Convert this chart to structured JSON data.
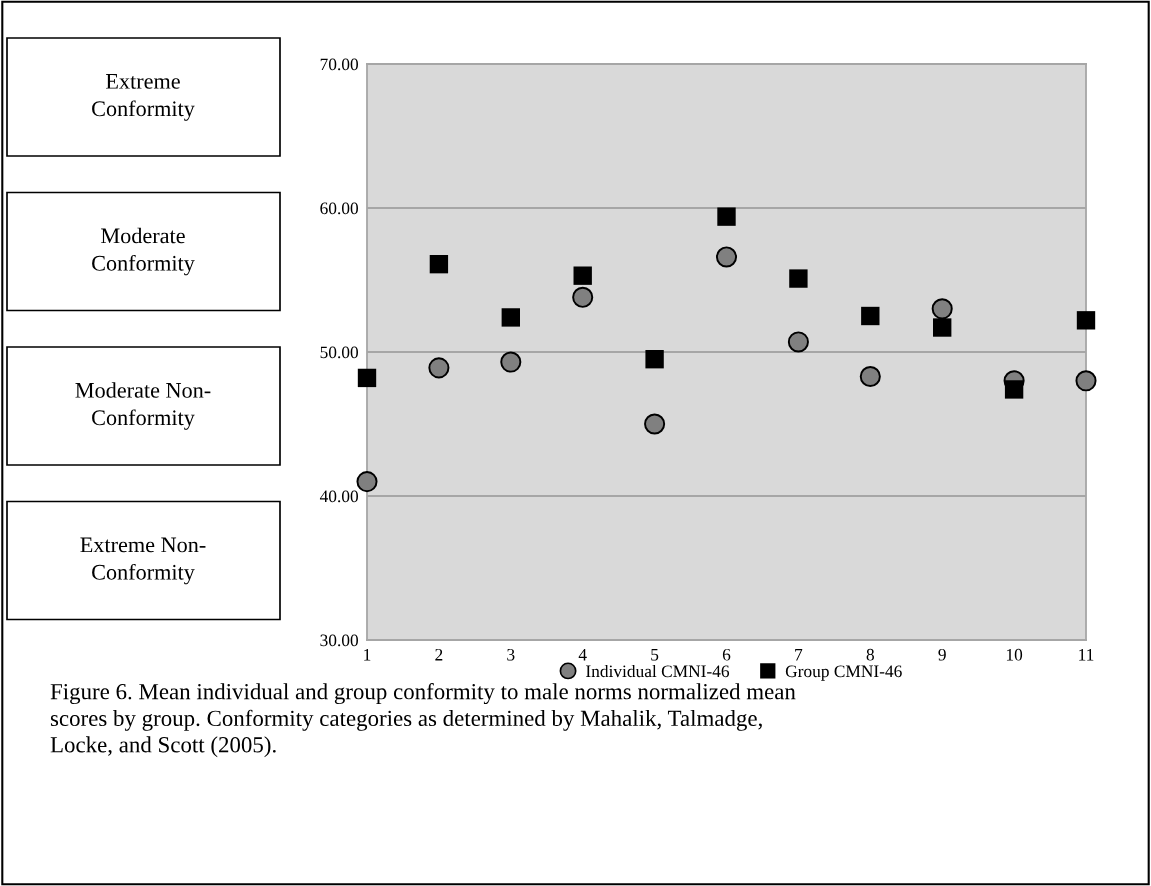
{
  "chart_data": {
    "type": "scatter",
    "categories": [
      "1",
      "2",
      "3",
      "4",
      "5",
      "6",
      "7",
      "8",
      "9",
      "10",
      "11"
    ],
    "series": [
      {
        "name": "Individual CMNI-46",
        "color": "#808080",
        "marker": "circle",
        "values": [
          41.0,
          48.9,
          49.3,
          53.8,
          45.0,
          56.6,
          50.7,
          48.3,
          53.0,
          48.0,
          48.0
        ]
      },
      {
        "name": "Group CMNI-46",
        "color": "#000000",
        "marker": "square",
        "values": [
          48.2,
          56.1,
          52.4,
          55.3,
          49.5,
          59.4,
          55.1,
          52.5,
          51.7,
          47.4,
          52.2
        ]
      }
    ],
    "ylim": [
      30,
      70
    ],
    "yticks": [
      {
        "value": 30,
        "label": "30.00"
      },
      {
        "value": 40,
        "label": "40.00"
      },
      {
        "value": 50,
        "label": "50.00"
      },
      {
        "value": 60,
        "label": "60.00"
      },
      {
        "value": 70,
        "label": "70.00"
      }
    ],
    "grid": "y",
    "legend": "bottom",
    "annotations": [
      "Extreme\nConformity",
      "Moderate\nConformity",
      "Moderate Non-\nConformity",
      "Extreme Non-\nConformity",
      "Figure 6. Mean individual and group conformity to male norms normalized mean\nscores by group. Conformity categories as determined by Mahalik, Talmadge,\nLocke, and Scott (2005)."
    ]
  }
}
